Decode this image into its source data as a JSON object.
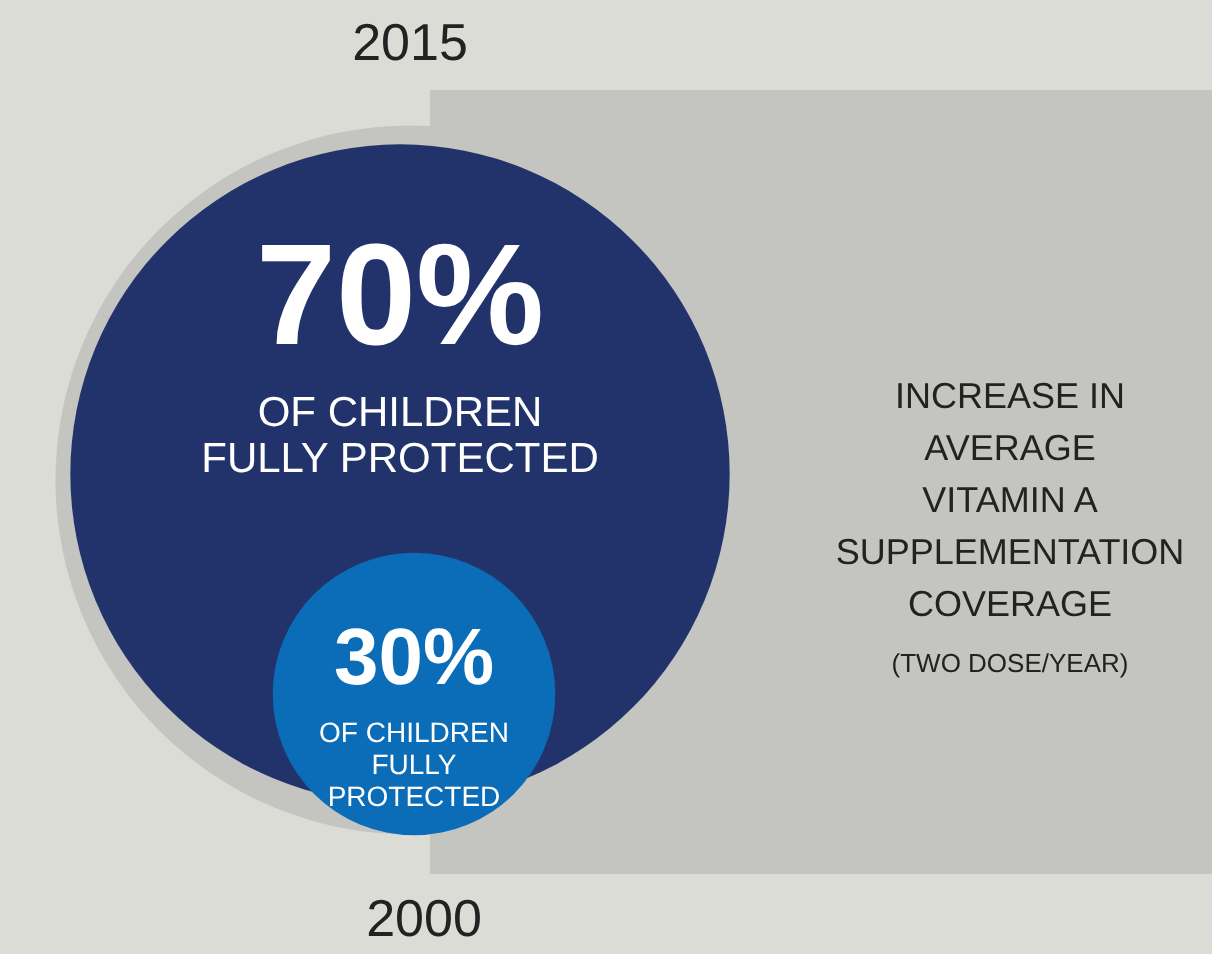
{
  "chart_data": {
    "type": "other",
    "categories": [
      "2015",
      "2000"
    ],
    "values": [
      70,
      30
    ],
    "value_labels": [
      "70%",
      "30%"
    ],
    "colors": [
      "#22336b",
      "#0b6db7"
    ],
    "annotations": [
      "OF CHILDREN\nFULLY PROTECTED",
      "OF CHILDREN\nFULLY\nPROTECTED",
      "INCREASE IN\nAVERAGE\nVITAMIN A\nSUPPLEMENTATION\nCOVERAGE",
      "(TWO DOSE/YEAR)"
    ]
  }
}
